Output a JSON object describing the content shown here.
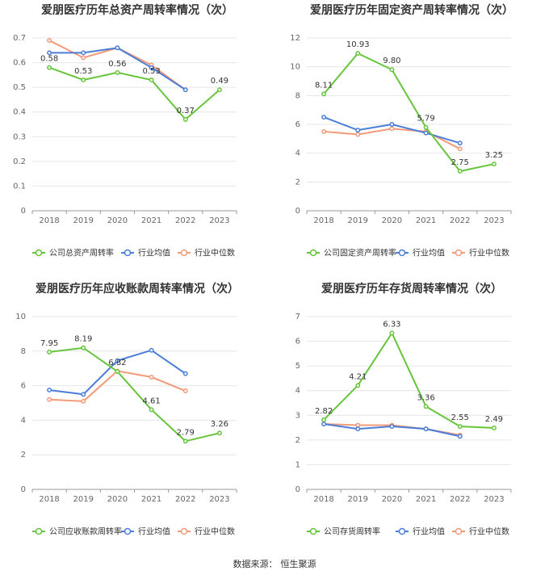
{
  "source": {
    "label": "数据来源：",
    "name": "恒生聚源"
  },
  "colors": {
    "company": "#66c53b",
    "avg": "#4a7ed9",
    "median": "#f39a79",
    "grid": "#e6e6e6",
    "axis": "#999999",
    "text": "#333333"
  },
  "chart_data": [
    {
      "type": "line",
      "title": "爱朋医疗历年总资产周转率情况（次）",
      "categories": [
        "2018",
        "2019",
        "2020",
        "2021",
        "2022",
        "2023"
      ],
      "ylim": [
        0,
        0.7
      ],
      "yticks": [
        "0",
        "0.1",
        "0.2",
        "0.3",
        "0.4",
        "0.5",
        "0.6",
        "0.7"
      ],
      "grid": true,
      "legend_position": "bottom",
      "series": [
        {
          "name": "公司总资产周转率",
          "values": [
            0.58,
            0.53,
            0.56,
            0.53,
            0.37,
            0.49
          ],
          "labels": [
            "0.58",
            "0.53",
            "0.56",
            "0.53",
            "0.37",
            "0.49"
          ]
        },
        {
          "name": "行业均值",
          "values": [
            0.64,
            0.64,
            0.66,
            0.58,
            0.49,
            null
          ]
        },
        {
          "name": "行业中位数",
          "values": [
            0.69,
            0.62,
            0.66,
            0.59,
            0.49,
            null
          ]
        }
      ]
    },
    {
      "type": "line",
      "title": "爱朋医疗历年固定资产周转率情况（次）",
      "categories": [
        "2018",
        "2019",
        "2020",
        "2021",
        "2022",
        "2023"
      ],
      "ylim": [
        0,
        12
      ],
      "yticks": [
        "0",
        "2",
        "4",
        "6",
        "8",
        "10",
        "12"
      ],
      "grid": true,
      "legend_position": "bottom",
      "series": [
        {
          "name": "公司固定资产周转率",
          "values": [
            8.11,
            10.93,
            9.8,
            5.79,
            2.75,
            3.25
          ],
          "labels": [
            "8.11",
            "10.93",
            "9.80",
            "5.79",
            "2.75",
            "3.25"
          ]
        },
        {
          "name": "行业均值",
          "values": [
            6.5,
            5.6,
            6.0,
            5.4,
            4.7,
            null
          ]
        },
        {
          "name": "行业中位数",
          "values": [
            5.5,
            5.3,
            5.7,
            5.5,
            4.3,
            null
          ]
        }
      ]
    },
    {
      "type": "line",
      "title": "爱朋医疗历年应收账款周转率情况（次）",
      "categories": [
        "2018",
        "2019",
        "2020",
        "2021",
        "2022",
        "2023"
      ],
      "ylim": [
        0,
        10
      ],
      "yticks": [
        "0",
        "2",
        "4",
        "6",
        "8",
        "10"
      ],
      "grid": true,
      "legend_position": "bottom",
      "series": [
        {
          "name": "公司应收账款周转率",
          "values": [
            7.95,
            8.19,
            6.82,
            4.61,
            2.79,
            3.26
          ],
          "labels": [
            "7.95",
            "8.19",
            "6.82",
            "4.61",
            "2.79",
            "3.26"
          ]
        },
        {
          "name": "行业均值",
          "values": [
            5.75,
            5.5,
            7.45,
            8.05,
            6.7,
            null
          ]
        },
        {
          "name": "行业中位数",
          "values": [
            5.2,
            5.1,
            6.85,
            6.5,
            5.7,
            null
          ]
        }
      ]
    },
    {
      "type": "line",
      "title": "爱朋医疗历年存货周转率情况（次）",
      "categories": [
        "2018",
        "2019",
        "2020",
        "2021",
        "2022",
        "2023"
      ],
      "ylim": [
        0,
        7
      ],
      "yticks": [
        "0",
        "1",
        "2",
        "3",
        "4",
        "5",
        "6",
        "7"
      ],
      "grid": true,
      "legend_position": "bottom",
      "series": [
        {
          "name": "公司存货周转率",
          "values": [
            2.82,
            4.21,
            6.33,
            3.36,
            2.55,
            2.49
          ],
          "labels": [
            "2.82",
            "4.21",
            "6.33",
            "3.36",
            "2.55",
            "2.49"
          ]
        },
        {
          "name": "行业均值",
          "values": [
            2.65,
            2.45,
            2.55,
            2.45,
            2.15,
            null
          ]
        },
        {
          "name": "行业中位数",
          "values": [
            2.65,
            2.6,
            2.6,
            2.45,
            2.2,
            null
          ]
        }
      ]
    }
  ]
}
